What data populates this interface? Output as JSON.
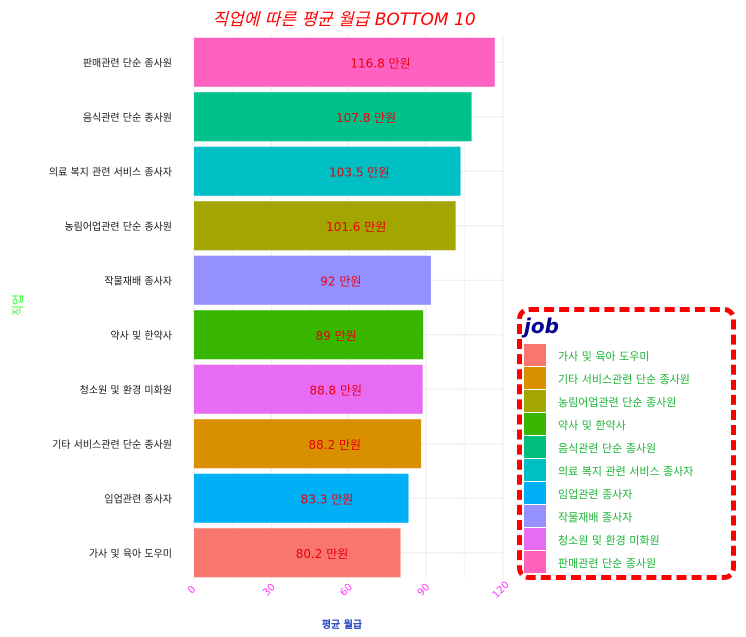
{
  "chart_data": {
    "type": "bar",
    "orientation": "horizontal",
    "title": "직업에 따른 평균 월급 BOTTOM 10",
    "xlabel": "평균 월급",
    "ylabel": "직업",
    "value_suffix": " 만원",
    "xlim": [
      0,
      120
    ],
    "xticks": [
      0,
      30,
      60,
      90,
      120
    ],
    "grid": true,
    "legend_title": "job",
    "legend_position": "right",
    "categories": [
      "판매관련 단순 종사원",
      "음식관련 단순 종사원",
      "의료 복지 관련 서비스 종사자",
      "농림어업관련 단순 종사원",
      "작물재배 종사자",
      "약사 및 한약사",
      "청소원 및 환경 미화원",
      "기타 서비스관련 단순 종사원",
      "임업관련 종사자",
      "가사 및 육아 도우미"
    ],
    "values": [
      116.8,
      107.8,
      103.5,
      101.6,
      92,
      89,
      88.8,
      88.2,
      83.3,
      80.2
    ],
    "value_labels": [
      "116.8 만원",
      "107.8 만원",
      "103.5 만원",
      "101.6 만원",
      "92 만원",
      "89 만원",
      "88.8 만원",
      "88.2 만원",
      "83.3 만원",
      "80.2 만원"
    ],
    "colors": [
      "#FF61C3",
      "#00C08B",
      "#00BFC4",
      "#A3A500",
      "#9590FF",
      "#39B600",
      "#E76BF3",
      "#D89000",
      "#00B0F6",
      "#F8766D"
    ],
    "legend": [
      {
        "label": "가사 및 육아 도우미",
        "color": "#F8766D"
      },
      {
        "label": "기타 서비스관련 단순 종사원",
        "color": "#D89000"
      },
      {
        "label": "농림어업관련 단순 종사원",
        "color": "#A3A500"
      },
      {
        "label": "약사 및 한약사",
        "color": "#39B600"
      },
      {
        "label": "음식관련 단순 종사원",
        "color": "#00BF7D"
      },
      {
        "label": "의료 복지 관련 서비스 종사자",
        "color": "#00BFC4"
      },
      {
        "label": "임업관련 종사자",
        "color": "#00B0F6"
      },
      {
        "label": "작물재배 종사자",
        "color": "#9590FF"
      },
      {
        "label": "청소원 및 환경 미화원",
        "color": "#E76BF3"
      },
      {
        "label": "판매관련 단순 종사원",
        "color": "#FF62BC"
      }
    ]
  }
}
